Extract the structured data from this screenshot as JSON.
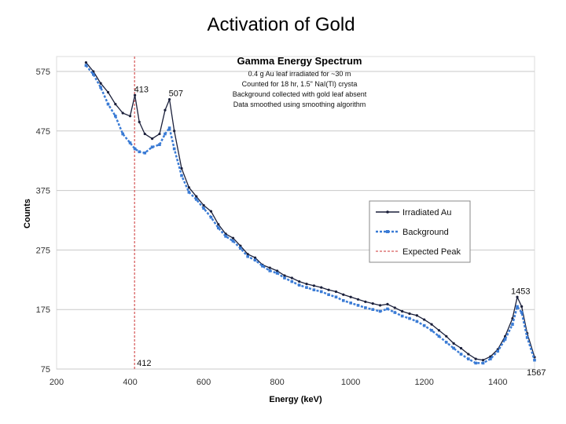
{
  "slide": {
    "title": "Activation of Gold"
  },
  "chart_data": {
    "type": "line",
    "title": "Gamma Energy Spectrum",
    "subtitle_lines": [
      "0.4 g Au leaf irradiated for ~30 m",
      "Counted for 18 hr, 1.5\" NaI(Tl) crysta",
      "Background collected with gold leaf absent",
      "Data smoothed using smoothing algorithm"
    ],
    "xlabel": "Energy (keV)",
    "ylabel": "Counts",
    "xlim": [
      200,
      1500
    ],
    "ylim": [
      75,
      600
    ],
    "x_ticks": [
      200,
      400,
      600,
      800,
      1000,
      1200,
      1400
    ],
    "y_ticks": [
      75,
      175,
      275,
      375,
      475,
      575
    ],
    "grid": "horizontal",
    "legend_position": "right",
    "legend": [
      "Irradiated Au",
      "Background",
      "Expected Peak"
    ],
    "expected_peak": {
      "x": 412,
      "label": "412"
    },
    "annotations": [
      {
        "text": "413",
        "x": 413,
        "y": 535
      },
      {
        "text": "507",
        "x": 507,
        "y": 528
      },
      {
        "text": "1453",
        "x": 1453,
        "y": 196
      },
      {
        "text": "1567",
        "x": 1500,
        "y": 75
      }
    ],
    "series": [
      {
        "name": "Irradiated Au",
        "color": "#1a1f3a",
        "x": [
          280,
          300,
          320,
          340,
          360,
          380,
          400,
          413,
          425,
          440,
          460,
          480,
          495,
          507,
          520,
          540,
          560,
          580,
          600,
          620,
          640,
          660,
          680,
          700,
          720,
          740,
          760,
          780,
          800,
          820,
          840,
          860,
          880,
          900,
          920,
          940,
          960,
          980,
          1000,
          1020,
          1040,
          1060,
          1080,
          1100,
          1120,
          1140,
          1160,
          1180,
          1200,
          1220,
          1240,
          1260,
          1280,
          1300,
          1320,
          1340,
          1360,
          1380,
          1400,
          1420,
          1440,
          1453,
          1465,
          1480,
          1500
        ],
        "y": [
          590,
          575,
          555,
          540,
          520,
          505,
          500,
          535,
          490,
          470,
          462,
          470,
          510,
          528,
          475,
          412,
          380,
          365,
          350,
          340,
          318,
          302,
          295,
          282,
          268,
          262,
          250,
          245,
          240,
          232,
          228,
          222,
          218,
          215,
          212,
          208,
          205,
          200,
          196,
          192,
          188,
          185,
          182,
          184,
          178,
          172,
          168,
          165,
          158,
          150,
          140,
          130,
          118,
          110,
          100,
          92,
          90,
          96,
          108,
          130,
          160,
          196,
          180,
          135,
          95
        ]
      },
      {
        "name": "Background",
        "color": "#3a7bd5",
        "x": [
          280,
          300,
          320,
          340,
          360,
          380,
          400,
          413,
          425,
          440,
          460,
          480,
          495,
          507,
          520,
          540,
          560,
          580,
          600,
          620,
          640,
          660,
          680,
          700,
          720,
          740,
          760,
          780,
          800,
          820,
          840,
          860,
          880,
          900,
          920,
          940,
          960,
          980,
          1000,
          1020,
          1040,
          1060,
          1080,
          1100,
          1120,
          1140,
          1160,
          1180,
          1200,
          1220,
          1240,
          1260,
          1280,
          1300,
          1320,
          1340,
          1360,
          1380,
          1400,
          1420,
          1440,
          1453,
          1465,
          1480,
          1500
        ],
        "y": [
          585,
          570,
          548,
          520,
          500,
          470,
          455,
          445,
          440,
          438,
          448,
          452,
          470,
          480,
          445,
          400,
          372,
          360,
          345,
          330,
          312,
          298,
          290,
          278,
          264,
          258,
          248,
          240,
          236,
          228,
          222,
          216,
          212,
          208,
          205,
          200,
          196,
          190,
          186,
          182,
          178,
          175,
          172,
          176,
          170,
          164,
          160,
          155,
          148,
          140,
          130,
          120,
          110,
          100,
          92,
          85,
          85,
          92,
          105,
          125,
          150,
          180,
          170,
          128,
          90
        ]
      }
    ]
  }
}
